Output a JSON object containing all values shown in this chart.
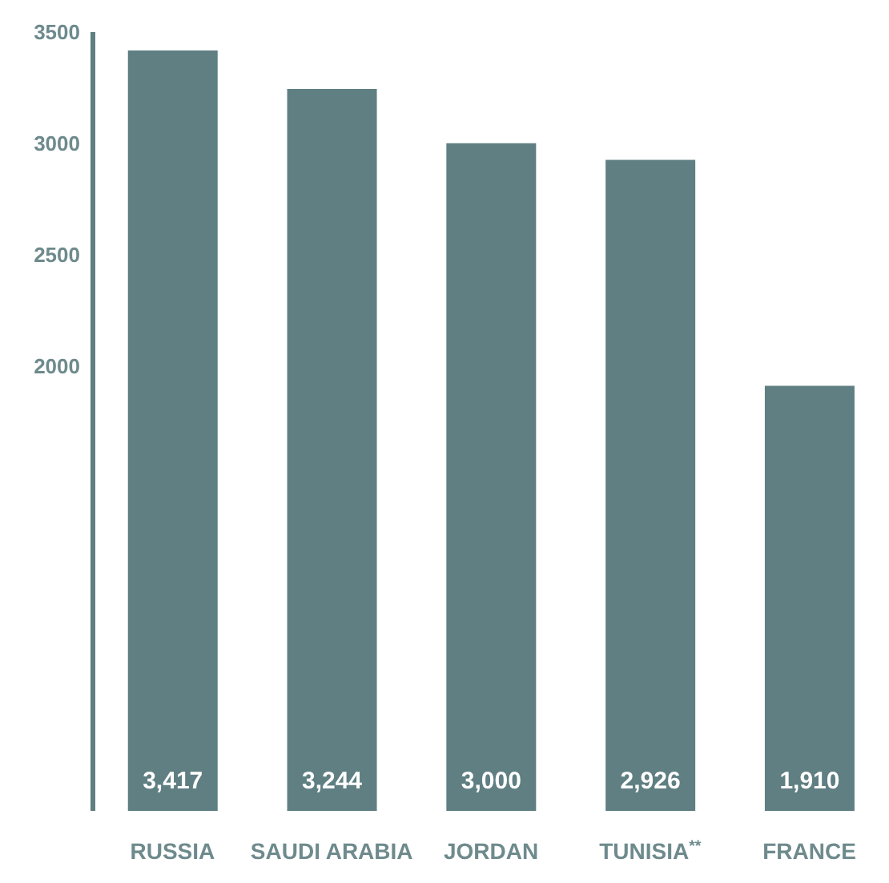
{
  "chart_data": {
    "type": "bar",
    "categories": [
      "RUSSIA",
      "SAUDI ARABIA",
      "JORDAN",
      "TUNISIA$^{**}$",
      "FRANCE"
    ],
    "values": [
      3417,
      3244,
      3000,
      2926,
      1910
    ],
    "color": "#5f7f82",
    "ylim": [
      0,
      3500
    ],
    "yticks": [
      2000,
      2500,
      3000,
      3500
    ],
    "value_labels": [
      "3,417",
      "3,244",
      "3,000",
      "2,926",
      "1,910"
    ],
    "grid": false,
    "legend": false
  }
}
